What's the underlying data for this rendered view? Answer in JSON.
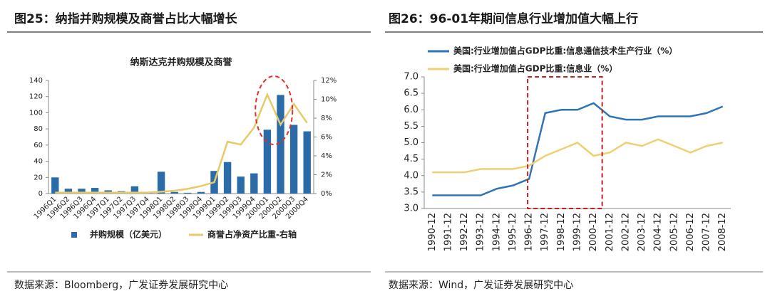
{
  "captions": [
    "图25：纳指并购规模及商誉占比大幅增长",
    "图26：96-01年期间信息行业增加值大幅上行"
  ],
  "sources": [
    "数据来源：Bloomberg，广发证券发展研究中心",
    "数据来源：Wind，广发证券发展研究中心"
  ],
  "chart_data": [
    {
      "type": "bar",
      "title": "纳斯达克并购规模及商誉",
      "categories": [
        "1996Q1",
        "1996Q2",
        "1996Q3",
        "1996Q4",
        "1997Q1",
        "1997Q2",
        "1997Q3",
        "1997Q4",
        "1998Q1",
        "1998Q2",
        "1998Q3",
        "1998Q4",
        "1999Q1",
        "1999Q2",
        "1999Q3",
        "1999Q4",
        "2000Q1",
        "2000Q2",
        "2000Q3",
        "2000Q4"
      ],
      "series": [
        {
          "name": "并购规模（亿美元）",
          "color": "#2b6ca8",
          "values": [
            20,
            6,
            6,
            7,
            4,
            3,
            9,
            1,
            27,
            2,
            1,
            2,
            28,
            39,
            21,
            25,
            79,
            122,
            85,
            77
          ]
        },
        {
          "name": "商誉占净资产比重-右轴",
          "color": "#e8c96a",
          "type": "line",
          "axis": "y2",
          "values": [
            0.1,
            0.1,
            0.1,
            0.1,
            0.1,
            0.1,
            0.1,
            0.1,
            0.2,
            0.3,
            0.5,
            0.8,
            1.2,
            5.5,
            5.2,
            7,
            10.5,
            7.3,
            9.5,
            7.5
          ]
        }
      ],
      "ylim": [
        0,
        140
      ],
      "yticks": [
        0,
        20,
        40,
        60,
        80,
        100,
        120,
        140
      ],
      "y2lim": [
        0,
        12
      ],
      "y2ticks": [
        {
          "value": 0,
          "label": "0%"
        },
        {
          "value": 2,
          "label": "2%"
        },
        {
          "value": 4,
          "label": "4%"
        },
        {
          "value": 6,
          "label": "6%"
        },
        {
          "value": 8,
          "label": "8%"
        },
        {
          "value": 10,
          "label": "10%"
        },
        {
          "value": 12,
          "label": "12%"
        }
      ],
      "legend": "bottom"
    },
    {
      "type": "line",
      "categories": [
        "1990-12",
        "1991-12",
        "1992-12",
        "1993-12",
        "1994-12",
        "1995-12",
        "1996-12",
        "1997-12",
        "1998-12",
        "1999-12",
        "2000-12",
        "2001-12",
        "2002-12",
        "2003-12",
        "2004-12",
        "2005-12",
        "2006-12",
        "2007-12",
        "2008-12"
      ],
      "series": [
        {
          "name": "美国:行业增加值占GDP比重:信息通信技术生产行业（%）",
          "color": "#2f75b5",
          "values": [
            3.4,
            3.4,
            3.4,
            3.4,
            3.6,
            3.7,
            3.9,
            5.9,
            6.0,
            6.0,
            6.2,
            5.8,
            5.7,
            5.7,
            5.8,
            5.8,
            5.8,
            5.9,
            6.1
          ]
        },
        {
          "name": "美国:行业增加值占GDP比重:信息业（%）",
          "color": "#f0cf73",
          "values": [
            4.1,
            4.1,
            4.1,
            4.2,
            4.2,
            4.2,
            4.3,
            4.6,
            4.8,
            5.0,
            4.6,
            4.7,
            5.0,
            4.9,
            5.1,
            4.9,
            4.7,
            4.9,
            5.0
          ]
        }
      ],
      "ylim": [
        3,
        7
      ],
      "yticks": [
        {
          "value": 3,
          "label": "3.0"
        },
        {
          "value": 3.5,
          "label": "3.5"
        },
        {
          "value": 4,
          "label": "4.0"
        },
        {
          "value": 4.5,
          "label": "4.5"
        },
        {
          "value": 5,
          "label": "5.0"
        },
        {
          "value": 5.5,
          "label": "5.5"
        },
        {
          "value": 6,
          "label": "6.0"
        },
        {
          "value": 6.5,
          "label": "6.5"
        },
        {
          "value": 7,
          "label": "7.0"
        }
      ],
      "legend": "top"
    }
  ]
}
